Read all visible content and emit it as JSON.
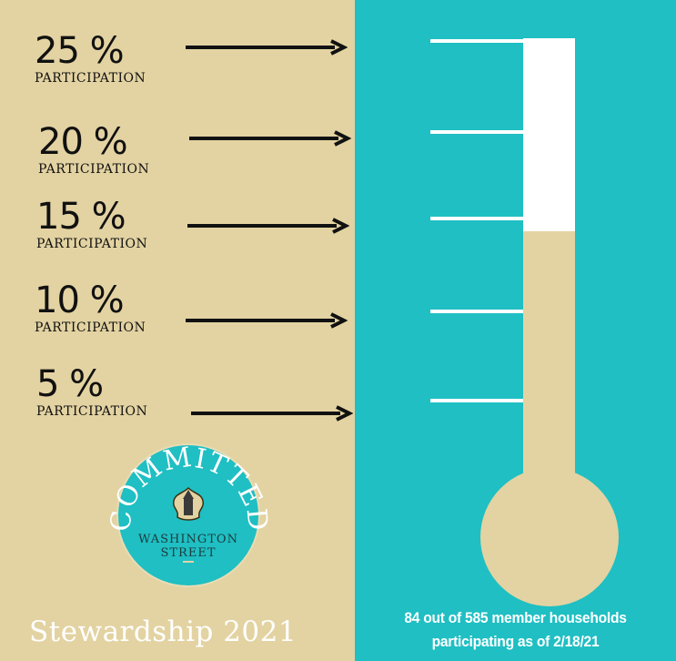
{
  "levels": [
    {
      "percent_label": "25 %",
      "participation_label": "PARTICIPATION",
      "value": 25
    },
    {
      "percent_label": "20 %",
      "participation_label": "PARTICIPATION",
      "value": 20
    },
    {
      "percent_label": "15 %",
      "participation_label": "PARTICIPATION",
      "value": 15
    },
    {
      "percent_label": "10 %",
      "participation_label": "PARTICIPATION",
      "value": 10
    },
    {
      "percent_label": "5 %",
      "participation_label": "PARTICIPATION",
      "value": 5
    }
  ],
  "thermometer": {
    "current_percent": 14.36,
    "max_percent": 25,
    "fill_color": "#e3d3a2",
    "empty_color": "#ffffff"
  },
  "logo": {
    "top_text": "COMMITTED",
    "name_line1": "WASHINGTON",
    "name_line2": "STREET",
    "circle_color": "#1fbfc3"
  },
  "footer": {
    "title": "Stewardship 2021",
    "caption_line1": "84 out of 585 member households",
    "caption_line2": "participating as of 2/18/21"
  },
  "colors": {
    "tan": "#e3d3a2",
    "teal": "#1fbfc3"
  }
}
